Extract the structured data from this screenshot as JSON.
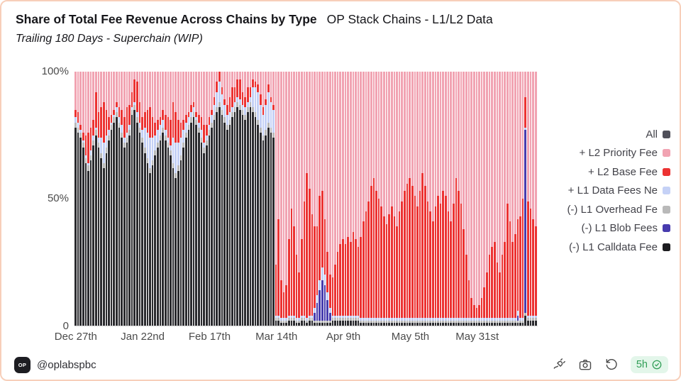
{
  "header": {
    "title_bold": "Share of Total Fee Revenue Across Chains by Type",
    "title_regular": "OP Stack Chains - L1/L2 Data",
    "subtitle": "Trailing 180 Days - Superchain (WIP)"
  },
  "footer": {
    "logo_text": "OP",
    "handle": "@oplabspbc",
    "refresh_age": "5h"
  },
  "chart_data": {
    "type": "bar",
    "stacked": true,
    "normalized_percent": true,
    "title": "Share of Total Fee Revenue Across Chains by Type",
    "subtitle": "Trailing 180 Days - Superchain (WIP)",
    "days": 180,
    "ylim": [
      0,
      100
    ],
    "y_tick_labels": [
      "100%",
      "50%",
      "0"
    ],
    "x_tick_labels": [
      "Dec 27th",
      "Jan 22nd",
      "Feb 17th",
      "Mar 14th",
      "Apr 9th",
      "May 5th",
      "May 31st"
    ],
    "x_tick_day_index": [
      0,
      26,
      52,
      78,
      104,
      130,
      156
    ],
    "legend_position": "right",
    "legend": [
      {
        "label": "All",
        "color": "#50505a"
      },
      {
        "label": "+ L2 Priority Fee",
        "color": "#f1a3b2"
      },
      {
        "label": "+ L2 Base Fee",
        "color": "#ec3232"
      },
      {
        "label": "+ L1 Data Fees Ne",
        "color": "#c5d1f6"
      },
      {
        "label": "(-) L1 Overhead Fe",
        "color": "#b9b9b9"
      },
      {
        "label": "(-) L1 Blob Fees",
        "color": "#473bae"
      },
      {
        "label": "(-) L1 Calldata Fee",
        "color": "#1c1c20"
      }
    ],
    "stack_order_bottom_to_top": [
      "L1 Calldata Fee",
      "L1 Overhead Fee",
      "L1 Blob Fees",
      "L1 Data Fees",
      "L2 Base Fee",
      "L2 Priority Fee"
    ],
    "series": [
      {
        "name": "L1 Calldata Fee",
        "color": "#2a2a2e",
        "values": [
          78,
          76,
          74,
          70,
          64,
          61,
          65,
          71,
          75,
          70,
          66,
          62,
          68,
          73,
          77,
          80,
          82,
          78,
          74,
          70,
          72,
          75,
          83,
          85,
          80,
          76,
          72,
          68,
          64,
          60,
          63,
          67,
          70,
          73,
          76,
          73,
          70,
          67,
          62,
          58,
          61,
          65,
          70,
          74,
          77,
          80,
          82,
          79,
          76,
          72,
          68,
          71,
          75,
          78,
          81,
          84,
          86,
          83,
          80,
          77,
          79,
          82,
          84,
          86,
          85,
          83,
          81,
          84,
          86,
          84,
          82,
          79,
          76,
          73,
          75,
          78,
          76,
          74,
          2,
          2,
          1,
          1,
          1,
          2,
          2,
          2,
          1,
          1,
          2,
          2,
          1,
          2,
          2,
          1,
          1,
          1,
          1,
          1,
          1,
          1,
          2,
          2,
          2,
          2,
          2,
          2,
          2,
          2,
          2,
          2,
          2,
          1,
          1,
          1,
          1,
          1,
          1,
          1,
          1,
          1,
          1,
          1,
          1,
          1,
          1,
          1,
          1,
          1,
          1,
          1,
          1,
          1,
          1,
          1,
          1,
          1,
          1,
          1,
          1,
          1,
          1,
          1,
          1,
          1,
          1,
          1,
          1,
          1,
          1,
          1,
          1,
          1,
          1,
          1,
          1,
          1,
          1,
          1,
          1,
          1,
          1,
          1,
          1,
          1,
          1,
          1,
          1,
          1,
          1,
          1,
          1,
          1,
          1,
          1,
          1,
          4,
          2,
          2,
          2,
          2
        ]
      },
      {
        "name": "L1 Overhead Fee",
        "color": "#b9b9b9",
        "values": [
          2,
          2,
          2,
          2,
          2,
          2,
          2,
          2,
          2,
          2,
          2,
          2,
          2,
          2,
          2,
          2,
          2,
          2,
          2,
          2,
          2,
          2,
          2,
          2,
          2,
          2,
          2,
          2,
          2,
          2,
          2,
          2,
          2,
          2,
          2,
          2,
          2,
          2,
          2,
          2,
          2,
          2,
          2,
          2,
          2,
          2,
          2,
          2,
          2,
          2,
          2,
          2,
          2,
          2,
          2,
          2,
          2,
          2,
          2,
          2,
          2,
          2,
          2,
          2,
          2,
          2,
          2,
          2,
          2,
          2,
          2,
          2,
          2,
          2,
          2,
          2,
          2,
          2,
          1,
          1,
          1,
          1,
          1,
          1,
          1,
          1,
          1,
          1,
          1,
          1,
          1,
          1,
          1,
          1,
          1,
          1,
          1,
          1,
          1,
          1,
          1,
          1,
          1,
          1,
          1,
          1,
          1,
          1,
          1,
          1,
          1,
          1,
          1,
          1,
          1,
          1,
          1,
          1,
          1,
          1,
          1,
          1,
          1,
          1,
          1,
          1,
          1,
          1,
          1,
          1,
          1,
          1,
          1,
          1,
          1,
          1,
          1,
          1,
          1,
          1,
          1,
          1,
          1,
          1,
          1,
          1,
          1,
          1,
          1,
          1,
          1,
          1,
          1,
          1,
          1,
          1,
          1,
          1,
          1,
          1,
          1,
          1,
          1,
          1,
          1,
          1,
          1,
          1,
          1,
          1,
          1,
          1,
          1,
          1,
          1,
          1,
          1,
          1,
          1,
          1
        ]
      },
      {
        "name": "L1 Blob Fees",
        "color": "#473bae",
        "values": [
          0,
          0,
          0,
          0,
          0,
          0,
          0,
          0,
          0,
          0,
          0,
          0,
          0,
          0,
          0,
          0,
          0,
          0,
          0,
          0,
          0,
          0,
          0,
          0,
          0,
          0,
          0,
          0,
          0,
          0,
          0,
          0,
          0,
          0,
          0,
          0,
          0,
          0,
          0,
          0,
          0,
          0,
          0,
          0,
          0,
          0,
          0,
          0,
          0,
          0,
          0,
          0,
          0,
          0,
          0,
          0,
          0,
          0,
          0,
          0,
          0,
          0,
          0,
          0,
          0,
          0,
          0,
          0,
          0,
          0,
          0,
          0,
          0,
          0,
          0,
          0,
          0,
          0,
          0,
          0,
          0,
          0,
          0,
          0,
          0,
          0,
          0,
          0,
          0,
          0,
          0,
          0,
          0,
          3,
          7,
          12,
          16,
          14,
          8,
          3,
          0,
          0,
          0,
          0,
          0,
          0,
          0,
          0,
          0,
          0,
          0,
          0,
          0,
          0,
          0,
          0,
          0,
          0,
          0,
          0,
          0,
          0,
          0,
          0,
          0,
          0,
          0,
          0,
          0,
          0,
          0,
          0,
          0,
          0,
          0,
          0,
          0,
          0,
          0,
          0,
          0,
          0,
          0,
          0,
          0,
          0,
          0,
          0,
          0,
          0,
          0,
          0,
          0,
          0,
          0,
          0,
          0,
          0,
          0,
          0,
          0,
          0,
          0,
          0,
          0,
          0,
          0,
          0,
          0,
          0,
          0,
          0,
          2,
          0,
          0,
          72,
          0,
          0,
          0,
          0
        ]
      },
      {
        "name": "L1 Data Fees",
        "color": "#c5d1f6",
        "values": [
          2,
          2,
          1,
          1,
          1,
          1,
          2,
          2,
          1,
          2,
          6,
          8,
          5,
          2,
          1,
          1,
          2,
          2,
          3,
          2,
          2,
          2,
          1,
          1,
          2,
          2,
          3,
          8,
          10,
          12,
          9,
          6,
          5,
          4,
          3,
          2,
          2,
          2,
          10,
          12,
          9,
          7,
          5,
          4,
          3,
          2,
          2,
          1,
          2,
          3,
          2,
          2,
          2,
          3,
          4,
          6,
          8,
          6,
          5,
          4,
          3,
          2,
          2,
          2,
          2,
          2,
          3,
          2,
          2,
          8,
          10,
          11,
          9,
          8,
          10,
          12,
          10,
          9,
          1,
          1,
          1,
          1,
          1,
          1,
          1,
          1,
          1,
          1,
          1,
          1,
          1,
          1,
          1,
          2,
          3,
          4,
          5,
          4,
          3,
          2,
          1,
          1,
          1,
          1,
          1,
          1,
          1,
          1,
          1,
          1,
          1,
          1,
          1,
          1,
          1,
          1,
          1,
          1,
          1,
          1,
          1,
          1,
          1,
          1,
          1,
          1,
          1,
          1,
          1,
          1,
          1,
          1,
          1,
          1,
          1,
          1,
          1,
          1,
          1,
          1,
          1,
          1,
          1,
          1,
          1,
          1,
          1,
          1,
          1,
          1,
          1,
          1,
          1,
          1,
          1,
          1,
          1,
          1,
          1,
          1,
          1,
          1,
          1,
          1,
          1,
          1,
          1,
          1,
          1,
          1,
          1,
          1,
          2,
          1,
          1,
          1,
          1,
          1,
          1,
          1
        ]
      },
      {
        "name": "L2 Base Fee",
        "color": "#ec3232",
        "values": [
          3,
          4,
          2,
          3,
          8,
          12,
          9,
          6,
          14,
          10,
          12,
          16,
          10,
          5,
          3,
          2,
          2,
          4,
          6,
          8,
          10,
          8,
          6,
          9,
          12,
          8,
          5,
          6,
          9,
          12,
          8,
          5,
          4,
          3,
          4,
          6,
          8,
          10,
          14,
          12,
          9,
          6,
          4,
          3,
          2,
          3,
          2,
          2,
          3,
          5,
          7,
          4,
          3,
          2,
          3,
          4,
          5,
          3,
          2,
          4,
          6,
          8,
          6,
          7,
          8,
          5,
          4,
          6,
          4,
          3,
          2,
          3,
          4,
          3,
          2,
          3,
          2,
          2,
          20,
          38,
          15,
          10,
          13,
          30,
          42,
          35,
          25,
          18,
          30,
          45,
          57,
          50,
          40,
          32,
          27,
          33,
          30,
          22,
          16,
          13,
          15,
          20,
          25,
          28,
          30,
          28,
          31,
          29,
          33,
          30,
          27,
          32,
          38,
          42,
          46,
          52,
          55,
          50,
          47,
          44,
          40,
          37,
          41,
          44,
          40,
          36,
          42,
          46,
          50,
          53,
          55,
          52,
          48,
          44,
          50,
          57,
          52,
          46,
          42,
          38,
          44,
          48,
          45,
          50,
          48,
          42,
          38,
          45,
          55,
          50,
          45,
          35,
          25,
          15,
          8,
          5,
          4,
          5,
          8,
          12,
          18,
          25,
          28,
          30,
          22,
          18,
          25,
          30,
          45,
          38,
          30,
          33,
          36,
          40,
          47,
          12,
          45,
          42,
          38,
          35
        ]
      },
      {
        "name": "L2 Priority Fee",
        "color": "#f1a3b2",
        "fill_remainder_to": 100
      }
    ]
  },
  "icons": {
    "plug": "plug-icon",
    "camera": "camera-icon",
    "refresh": "rotate-ccw-icon",
    "verified": "seal-check-icon",
    "logo": "op-logo-icon"
  }
}
